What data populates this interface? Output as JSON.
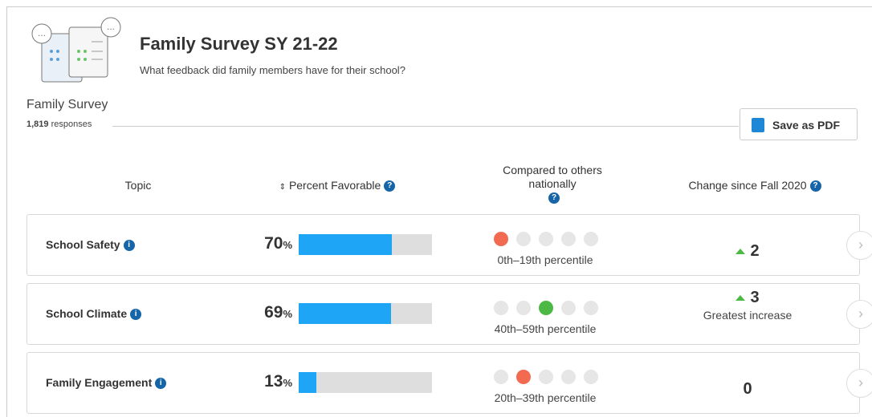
{
  "header": {
    "title": "Family Survey SY 21-22",
    "subtitle": "What feedback did family members have for their school?"
  },
  "section": {
    "title": "Family Survey",
    "responses": "1,819",
    "responses_label": "responses",
    "button": "Save as PDF"
  },
  "table": {
    "columns": [
      "Topic",
      "Percent Favorable",
      "Compared to others nationally",
      "Change since Fall 2020"
    ],
    "percent_unit": "%",
    "rows": [
      {
        "topic": "School Safety",
        "percent": 70,
        "dot": 0,
        "dot_color": "#f26a4f",
        "percentile": "0th–19th percentile",
        "change": 2
      },
      {
        "topic": "School Climate",
        "percent": 69,
        "dot": 2,
        "dot_color": "#4cb944",
        "percentile": "40th–59th percentile",
        "change": 3,
        "note": "Greatest increase"
      },
      {
        "topic": "Family Engagement",
        "percent": 13,
        "dot": 1,
        "dot_color": "#f26a4f",
        "percentile": "20th–39th percentile",
        "change": 0
      }
    ]
  }
}
